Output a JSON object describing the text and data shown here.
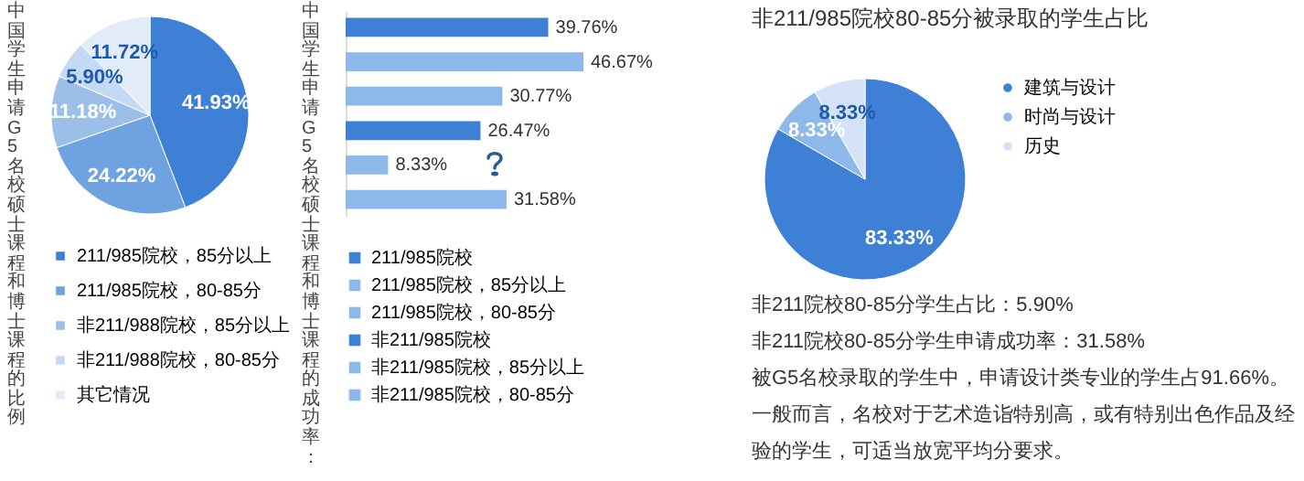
{
  "chart_data": [
    {
      "type": "pie",
      "title": "中国学生申请G5名校硕士课程和博士课程的比例",
      "categories": [
        "211/985院校，85分以上",
        "211/985院校，80-85分",
        "非211/988院校，85分以上",
        "非211/988院校，80-85分",
        "其它情况"
      ],
      "values": [
        41.93,
        24.22,
        11.18,
        5.9,
        11.72
      ],
      "value_labels": [
        "41.93%",
        "24.22%",
        "11.18%",
        "5.90%",
        "11.72%"
      ],
      "colors": [
        "#3d80d6",
        "#6fa2e0",
        "#9cbfea",
        "#c4d9f3",
        "#e2ecf9"
      ],
      "legend": "bottom"
    },
    {
      "type": "bar",
      "orientation": "horizontal",
      "title": "中国学生申请G5名校硕士课程和博士课程的成功率：",
      "categories": [
        null,
        null,
        null,
        null,
        null,
        null
      ],
      "series": [
        {
          "name": "211/985院校",
          "color": "#3d80d6",
          "values": [
            39.76,
            null,
            null,
            null,
            null,
            null
          ],
          "value_labels": [
            "39.76%",
            null,
            null,
            null,
            null,
            null
          ]
        },
        {
          "name": "211/985院校，85分以上",
          "color": "#8db8ea",
          "values": [
            null,
            46.67,
            null,
            null,
            null,
            null
          ],
          "value_labels": [
            null,
            "46.67%",
            null,
            null,
            null,
            null
          ]
        },
        {
          "name": "211/985院校，80-85分",
          "color": "#8db8ea",
          "values": [
            null,
            null,
            30.77,
            null,
            null,
            null
          ],
          "value_labels": [
            null,
            null,
            "30.77%",
            null,
            null,
            null
          ]
        },
        {
          "name": "非211/985院校",
          "color": "#3d80d6",
          "values": [
            null,
            null,
            null,
            26.47,
            null,
            null
          ],
          "value_labels": [
            null,
            null,
            null,
            "26.47%",
            null,
            null
          ]
        },
        {
          "name": "非211/985院校，85分以上",
          "color": "#8db8ea",
          "values": [
            null,
            null,
            null,
            null,
            8.33,
            null
          ],
          "value_labels": [
            null,
            null,
            null,
            null,
            "8.33%",
            null
          ]
        },
        {
          "name": "非211/985院校，80-85分",
          "color": "#8db8ea",
          "values": [
            null,
            null,
            null,
            null,
            null,
            31.58
          ],
          "value_labels": [
            null,
            null,
            null,
            null,
            null,
            "31.58%"
          ]
        }
      ],
      "stacked": true,
      "legend": "bottom",
      "tick_labels": false
    },
    {
      "type": "pie",
      "title": "非211/985院校80-85分被录取的学生占比",
      "categories": [
        "建筑与设计",
        "时尚与设计",
        "历史"
      ],
      "values": [
        83.33,
        8.33,
        8.33
      ],
      "value_labels": [
        "83.33%",
        "8.33%",
        "8.33%"
      ],
      "colors": [
        "#3d80d6",
        "#8db8ea",
        "#d3e2f6"
      ],
      "legend": "right"
    },
    {
      "type": "other",
      "annotations": [
        "非211院校80-85分学生占比：5.90%",
        "非211院校80-85分学生申请成功率：31.58%",
        "被G5名校录取的学生中，申请设计类专业的学生占91.66%。一般而言，名校对于艺术造诣特别高，或有特别出色作品及经验的学生，可适当放宽平均分要求。"
      ]
    }
  ]
}
